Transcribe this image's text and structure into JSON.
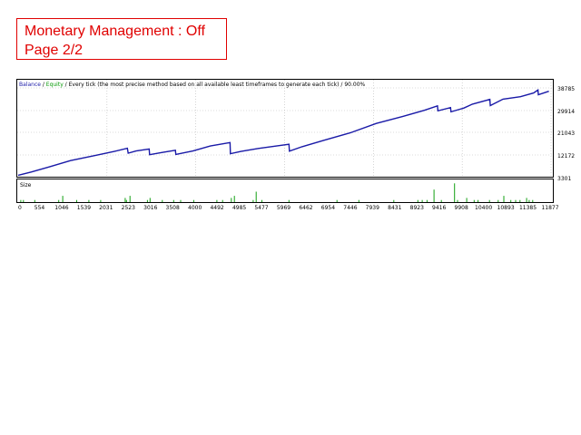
{
  "heading": {
    "line1": "Monetary Management : Off",
    "line2": "Page 2/2"
  },
  "colors": {
    "balance": "#1a1aa8",
    "equity": "#0a9a0a",
    "size_bars": "#12a012",
    "heading": "#e00000"
  },
  "chart_data": [
    {
      "type": "line",
      "header": {
        "balance": "Balance",
        "sep1": " / ",
        "equity": "Equity",
        "rest": " / Every tick (the most precise method based on all available least timeframes to generate each tick) / 90.00%"
      },
      "ylabels": [
        "38785",
        "29914",
        "21043",
        "12172",
        "3301"
      ],
      "ylim": [
        3301,
        38785
      ],
      "xlim": [
        0,
        12200
      ],
      "grid": true,
      "series": [
        {
          "name": "Balance",
          "x": [
            0,
            300,
            700,
            1200,
            1800,
            2200,
            2500,
            2520,
            2700,
            3000,
            3010,
            3300,
            3600,
            3610,
            4000,
            4400,
            4850,
            4860,
            5100,
            5500,
            6200,
            6210,
            6500,
            7000,
            7600,
            8200,
            8800,
            9300,
            9600,
            9610,
            9900,
            9910,
            10200,
            10400,
            10800,
            10810,
            11100,
            11500,
            11800,
            11900,
            11910,
            12150
          ],
          "y": [
            3900,
            5200,
            7200,
            9800,
            12000,
            13500,
            14800,
            12800,
            13700,
            14500,
            12200,
            13100,
            14000,
            12300,
            13700,
            15700,
            17100,
            12600,
            13500,
            14700,
            16400,
            13600,
            15400,
            18000,
            21000,
            24800,
            27600,
            30100,
            31900,
            29900,
            31200,
            29500,
            31000,
            32600,
            34500,
            32000,
            34600,
            35600,
            37100,
            38300,
            36400,
            37800
          ]
        }
      ]
    },
    {
      "type": "bar",
      "ylabel": "Size",
      "xlim": [
        0,
        12200
      ],
      "x": [
        60,
        120,
        380,
        930,
        1020,
        1340,
        1620,
        1890,
        2450,
        2480,
        2560,
        2960,
        3020,
        3300,
        3560,
        3720,
        4020,
        4550,
        4680,
        4880,
        4950,
        5380,
        5450,
        5580,
        6200,
        7300,
        7800,
        8600,
        9150,
        9250,
        9360,
        9520,
        9690,
        9990,
        10060,
        10270,
        10440,
        10530,
        10790,
        10990,
        11120,
        11280,
        11390,
        11490,
        11640,
        11700,
        11780
      ],
      "values": [
        1,
        1,
        1,
        1,
        3,
        1,
        1,
        1,
        2,
        1,
        3,
        1,
        2,
        1,
        1,
        1,
        1,
        1,
        1,
        2,
        3,
        1,
        5,
        1,
        1,
        1,
        1,
        1,
        1,
        1,
        1,
        6,
        1,
        9,
        1,
        2,
        1,
        1,
        1,
        1,
        3,
        1,
        1,
        1,
        2,
        1,
        1
      ],
      "xlabels": [
        "0",
        "554",
        "1046",
        "1539",
        "2031",
        "2523",
        "3016",
        "3508",
        "4000",
        "4492",
        "4985",
        "5477",
        "5969",
        "6462",
        "6954",
        "7446",
        "7939",
        "8431",
        "8923",
        "9416",
        "9908",
        "10400",
        "10893",
        "11385",
        "11877"
      ]
    }
  ]
}
